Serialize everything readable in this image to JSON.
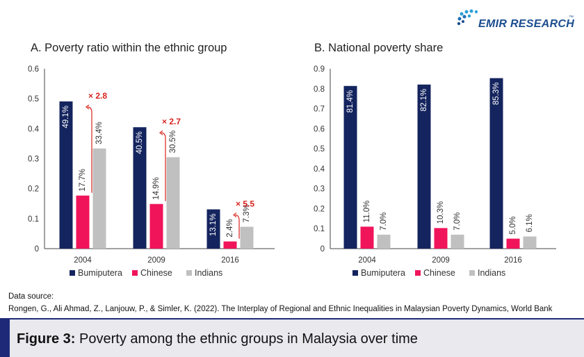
{
  "brand": {
    "name": "EMIR RESEARCH",
    "tm": "™"
  },
  "chart_data": [
    {
      "type": "bar",
      "title": "A. Poverty ratio within the ethnic group",
      "categories": [
        "2004",
        "2009",
        "2016"
      ],
      "series": [
        {
          "name": "Bumiputera",
          "color": "#14245e",
          "values": [
            0.491,
            0.405,
            0.131
          ],
          "labels": [
            "49.1%",
            "40.5%",
            "13.1%"
          ]
        },
        {
          "name": "Chinese",
          "color": "#f0145a",
          "values": [
            0.177,
            0.149,
            0.024
          ],
          "labels": [
            "17.7%",
            "14.9%",
            "2.4%"
          ]
        },
        {
          "name": "Indians",
          "color": "#c0c0c0",
          "values": [
            0.334,
            0.305,
            0.073
          ],
          "labels": [
            "33.4%",
            "30.5%",
            "7.3%"
          ]
        }
      ],
      "ylim": [
        0,
        0.6
      ],
      "yticks": [
        "0",
        "0.1",
        "0.2",
        "0.3",
        "0.4",
        "0.5",
        "0.6"
      ],
      "annotations": [
        "× 2.8",
        "× 2.7",
        "× 5.5"
      ],
      "legend": "bottom"
    },
    {
      "type": "bar",
      "title": "B. National poverty share",
      "categories": [
        "2004",
        "2009",
        "2016"
      ],
      "series": [
        {
          "name": "Bumiputera",
          "color": "#14245e",
          "values": [
            0.814,
            0.821,
            0.853
          ],
          "labels": [
            "81.4%",
            "82.1%",
            "85.3%"
          ]
        },
        {
          "name": "Chinese",
          "color": "#f0145a",
          "values": [
            0.11,
            0.103,
            0.05
          ],
          "labels": [
            "11.0%",
            "10.3%",
            "5.0%"
          ]
        },
        {
          "name": "Indians",
          "color": "#c0c0c0",
          "values": [
            0.07,
            0.07,
            0.061
          ],
          "labels": [
            "7.0%",
            "7.0%",
            "6.1%"
          ]
        }
      ],
      "ylim": [
        0,
        0.9
      ],
      "yticks": [
        "0",
        "0.1",
        "0.2",
        "0.3",
        "0.4",
        "0.5",
        "0.6",
        "0.7",
        "0.8",
        "0.9"
      ],
      "legend": "bottom"
    }
  ],
  "source": {
    "heading": "Data source:",
    "citation": "Rongen, G., Ali Ahmad, Z., Lanjouw, P., & Simler, K. (2022). The Interplay of Regional and Ethnic Inequalities in Malaysian Poverty Dynamics, World Bank"
  },
  "figure": {
    "label": "Figure 3:",
    "caption": "Poverty among the ethnic groups in Malaysia over time"
  }
}
